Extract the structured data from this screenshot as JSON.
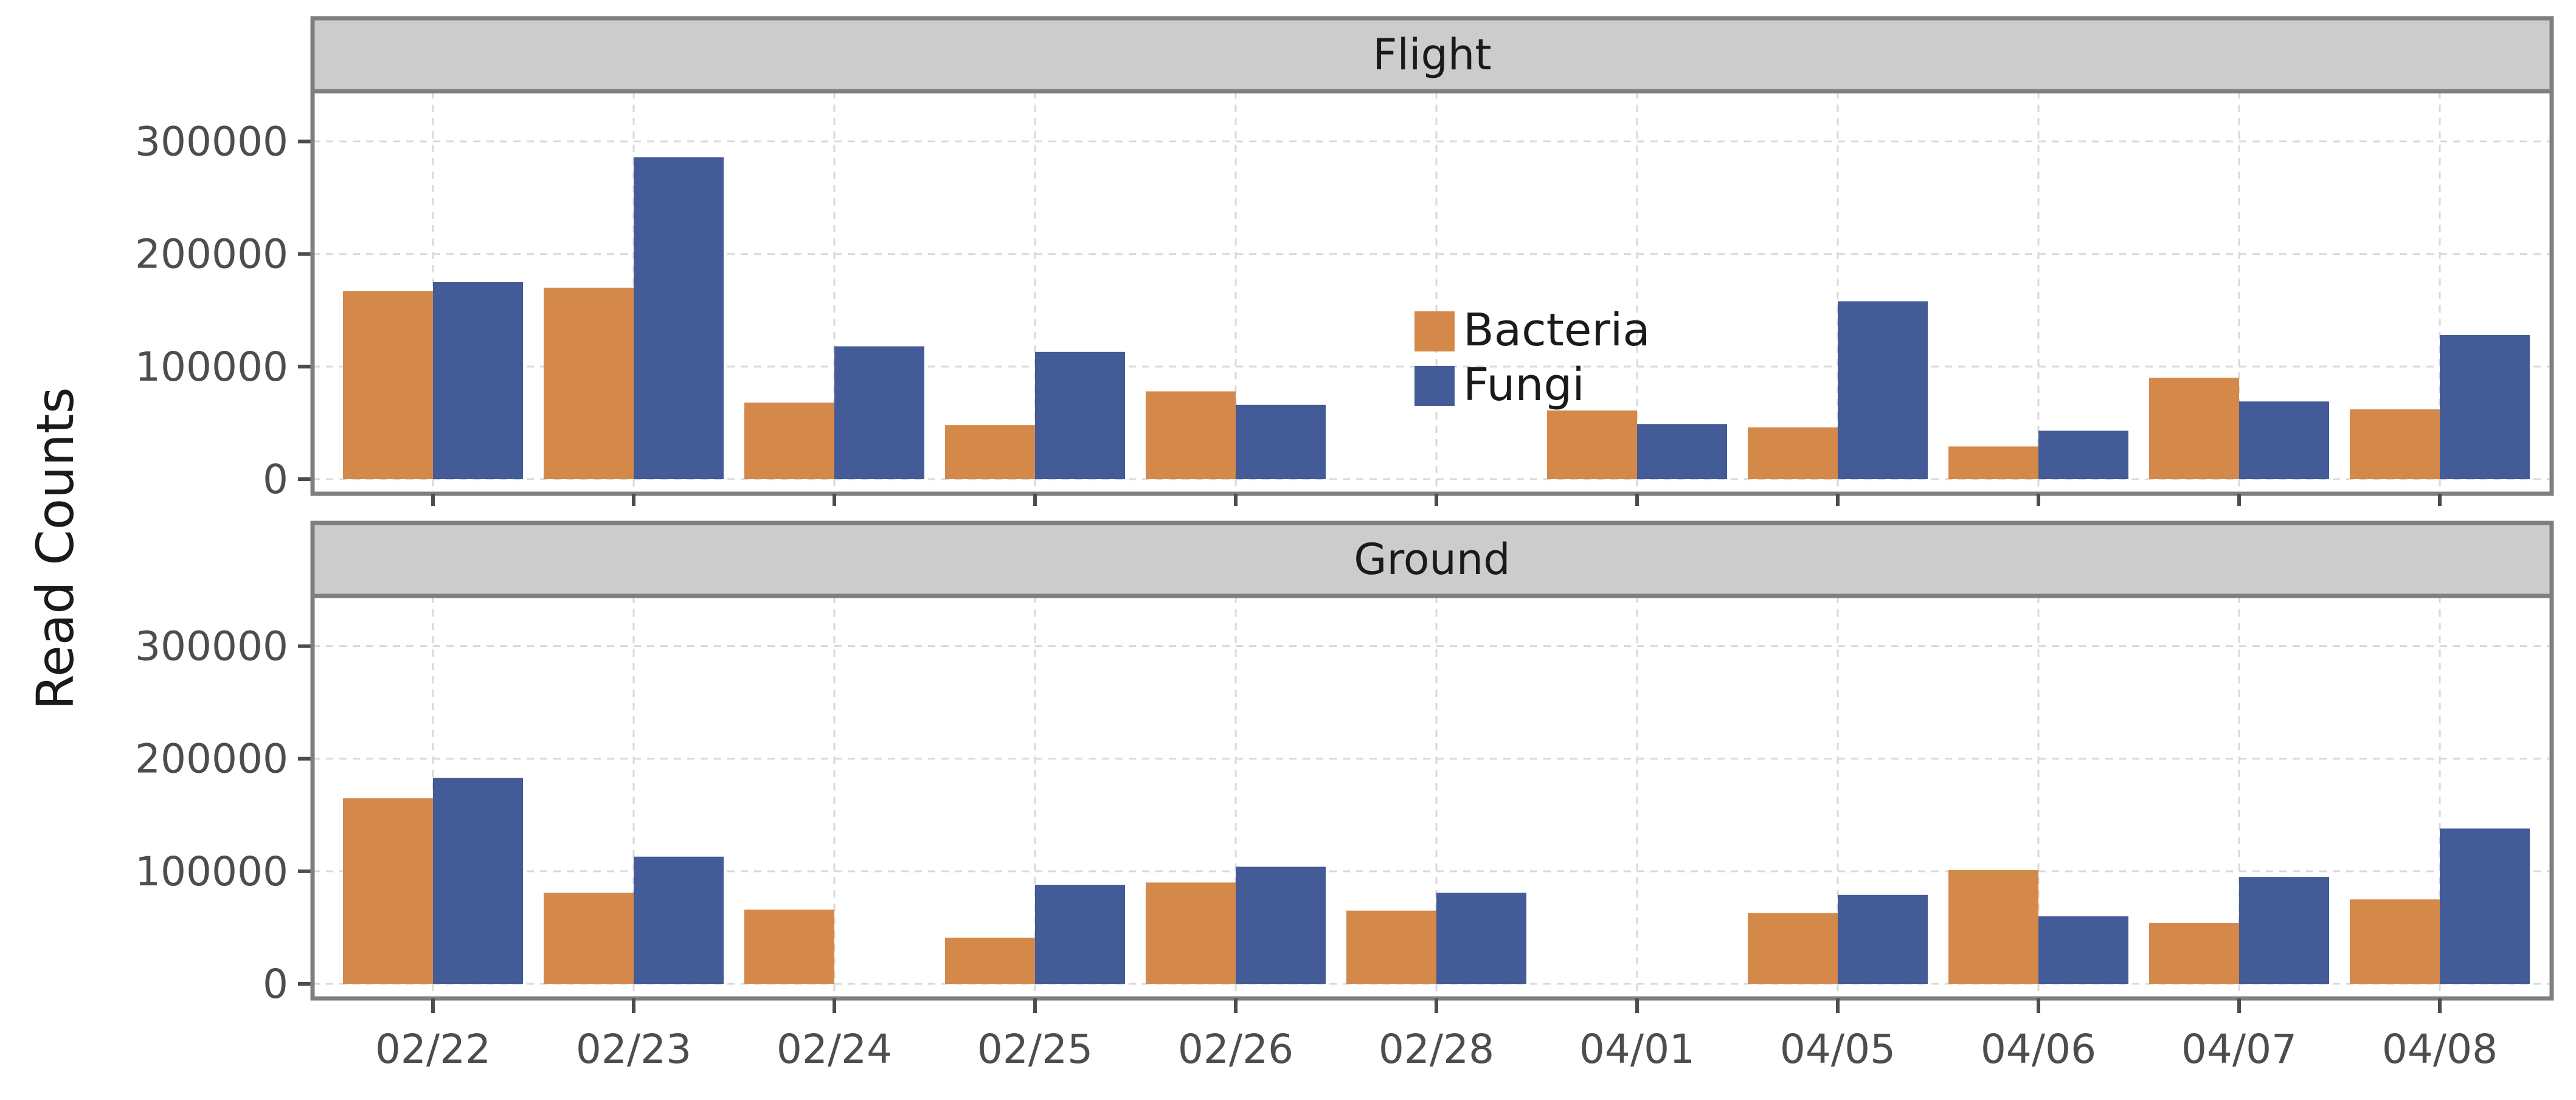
{
  "chart_data": {
    "type": "bar",
    "ylabel": "Read Counts",
    "xlabel": "",
    "categories": [
      "02/22",
      "02/23",
      "02/24",
      "02/25",
      "02/26",
      "02/28",
      "04/01",
      "04/05",
      "04/06",
      "04/07",
      "04/08"
    ],
    "ylim": [
      0,
      350000
    ],
    "yticks": [
      0,
      100000,
      200000,
      300000
    ],
    "ytick_labels": [
      "0",
      "100000",
      "200000",
      "300000"
    ],
    "grid": true,
    "legend_position": "inside-center-top",
    "series_colors": {
      "Bacteria": "#D4894A",
      "Fungi": "#435B96"
    },
    "legend": [
      {
        "name": "Bacteria",
        "color": "#D4894A"
      },
      {
        "name": "Fungi",
        "color": "#435B96"
      }
    ],
    "panels": [
      {
        "title": "Flight",
        "series": [
          {
            "name": "Bacteria",
            "values": [
              167000,
              170000,
              68000,
              48000,
              78000,
              null,
              61000,
              46000,
              29000,
              90000,
              62000
            ]
          },
          {
            "name": "Fungi",
            "values": [
              175000,
              286000,
              118000,
              113000,
              66000,
              null,
              49000,
              158000,
              43000,
              69000,
              128000
            ]
          }
        ]
      },
      {
        "title": "Ground",
        "series": [
          {
            "name": "Bacteria",
            "values": [
              165000,
              81000,
              66000,
              41000,
              90000,
              65000,
              null,
              63000,
              101000,
              54000,
              75000
            ]
          },
          {
            "name": "Fungi",
            "values": [
              183000,
              113000,
              null,
              88000,
              104000,
              81000,
              null,
              79000,
              60000,
              95000,
              138000
            ]
          }
        ]
      }
    ]
  }
}
